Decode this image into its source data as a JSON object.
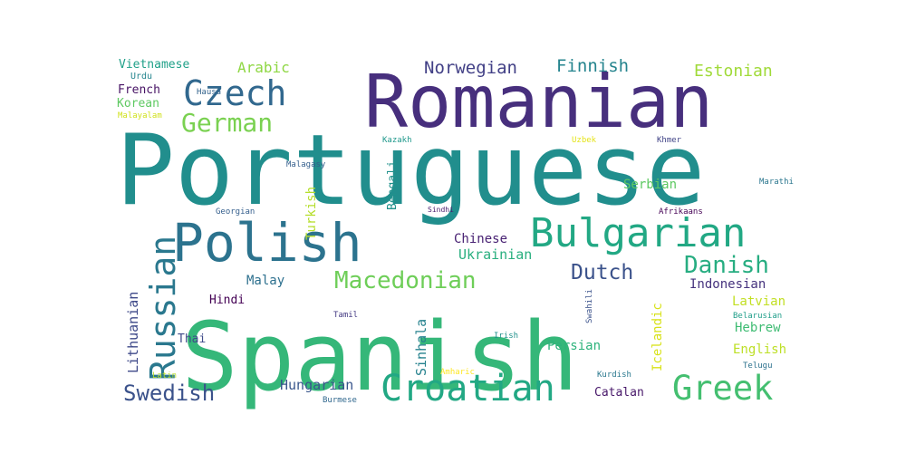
{
  "chart_data": {
    "type": "wordcloud",
    "colormap": "viridis",
    "background": "#ffffff",
    "words": [
      {
        "text": "Portuguese",
        "weight": 100,
        "color": "#218e8d"
      },
      {
        "text": "Spanish",
        "weight": 97,
        "color": "#35b779"
      },
      {
        "text": "Romanian",
        "weight": 70,
        "color": "#472f7d"
      },
      {
        "text": "Polish",
        "weight": 52,
        "color": "#2c738e"
      },
      {
        "text": "Bulgarian",
        "weight": 38,
        "color": "#22a884"
      },
      {
        "text": "Croatian",
        "weight": 35,
        "color": "#22a884"
      },
      {
        "text": "Greek",
        "weight": 33,
        "color": "#44bf70"
      },
      {
        "text": "Russian",
        "weight": 32,
        "color": "#2a788e"
      },
      {
        "text": "Czech",
        "weight": 32,
        "color": "#31688e"
      },
      {
        "text": "German",
        "weight": 24,
        "color": "#7ad151"
      },
      {
        "text": "Macedonian",
        "weight": 22,
        "color": "#6ece58"
      },
      {
        "text": "Danish",
        "weight": 22,
        "color": "#27ad81"
      },
      {
        "text": "Dutch",
        "weight": 20,
        "color": "#3b528b"
      },
      {
        "text": "Swedish",
        "weight": 20,
        "color": "#3b528b"
      },
      {
        "text": "Norwegian",
        "weight": 14,
        "color": "#424086"
      },
      {
        "text": "Finnish",
        "weight": 14,
        "color": "#25848e"
      },
      {
        "text": "Estonian",
        "weight": 13,
        "color": "#a0da39"
      },
      {
        "text": "Arabic",
        "weight": 11,
        "color": "#8fd744"
      },
      {
        "text": "Ukrainian",
        "weight": 11,
        "color": "#29af7f"
      },
      {
        "text": "Hungarian",
        "weight": 11,
        "color": "#39568c"
      },
      {
        "text": "Lithuanian",
        "weight": 11,
        "color": "#3e4989"
      },
      {
        "text": "Sinhala",
        "weight": 11,
        "color": "#26828e"
      },
      {
        "text": "Turkish",
        "weight": 10,
        "color": "#b5de2b"
      },
      {
        "text": "Chinese",
        "weight": 10,
        "color": "#482173"
      },
      {
        "text": "Indonesian",
        "weight": 10,
        "color": "#46337e"
      },
      {
        "text": "Latvian",
        "weight": 10,
        "color": "#c2df23"
      },
      {
        "text": "English",
        "weight": 10,
        "color": "#bddf26"
      },
      {
        "text": "Hebrew",
        "weight": 10,
        "color": "#3fbc73"
      },
      {
        "text": "Icelandic",
        "weight": 10,
        "color": "#d8e219"
      },
      {
        "text": "Serbian",
        "weight": 9,
        "color": "#5ec962"
      },
      {
        "text": "Malay",
        "weight": 9,
        "color": "#2d708e"
      },
      {
        "text": "Persian",
        "weight": 9,
        "color": "#2eb37c"
      },
      {
        "text": "Catalan",
        "weight": 9,
        "color": "#48186a"
      },
      {
        "text": "Bengali",
        "weight": 9,
        "color": "#21918c"
      },
      {
        "text": "Thai",
        "weight": 8,
        "color": "#3e4a89"
      },
      {
        "text": "Hindi",
        "weight": 8,
        "color": "#440154"
      },
      {
        "text": "French",
        "weight": 8,
        "color": "#471365"
      },
      {
        "text": "Korean",
        "weight": 8,
        "color": "#5ec962"
      },
      {
        "text": "Vietnamese",
        "weight": 8,
        "color": "#1fa088"
      },
      {
        "text": "Urdu",
        "weight": 6,
        "color": "#25858e"
      },
      {
        "text": "Hausa",
        "weight": 5,
        "color": "#33638d"
      },
      {
        "text": "Malayalam",
        "weight": 5,
        "color": "#d0e11c"
      },
      {
        "text": "Kazakh",
        "weight": 5,
        "color": "#1f988b"
      },
      {
        "text": "Uzbek",
        "weight": 5,
        "color": "#e5e419"
      },
      {
        "text": "Khmer",
        "weight": 5,
        "color": "#414487"
      },
      {
        "text": "Malagasy",
        "weight": 5,
        "color": "#355f8d"
      },
      {
        "text": "Marathi",
        "weight": 5,
        "color": "#2a768e"
      },
      {
        "text": "Georgian",
        "weight": 5,
        "color": "#355f8d"
      },
      {
        "text": "Sindhi",
        "weight": 4,
        "color": "#481a6c"
      },
      {
        "text": "Afrikaans",
        "weight": 5,
        "color": "#440154"
      },
      {
        "text": "Tamil",
        "weight": 5,
        "color": "#443a83"
      },
      {
        "text": "Swahili",
        "weight": 5,
        "color": "#3b528b"
      },
      {
        "text": "Irish",
        "weight": 5,
        "color": "#21918c"
      },
      {
        "text": "Belarusian",
        "weight": 5,
        "color": "#1f9e89"
      },
      {
        "text": "Telugu",
        "weight": 5,
        "color": "#2c728e"
      },
      {
        "text": "Kurdish",
        "weight": 5,
        "color": "#2a788e"
      },
      {
        "text": "Amharic",
        "weight": 5,
        "color": "#fde725"
      },
      {
        "text": "Latin",
        "weight": 5,
        "color": "#b8de29"
      },
      {
        "text": "Burmese",
        "weight": 5,
        "color": "#31688e"
      }
    ]
  }
}
